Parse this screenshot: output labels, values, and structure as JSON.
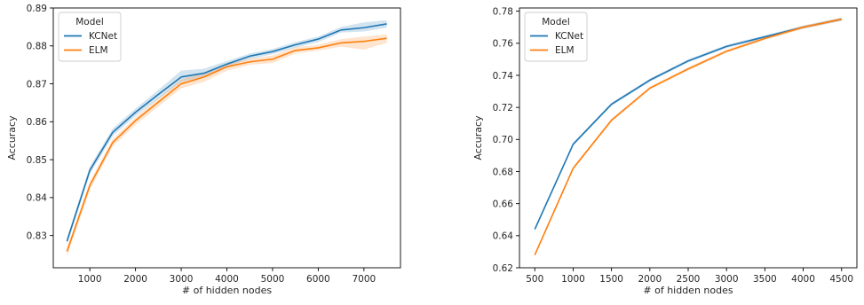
{
  "chart_data": [
    {
      "type": "line",
      "xlabel": "# of hidden nodes",
      "ylabel": "Accuracy",
      "xlim": [
        200,
        7800
      ],
      "ylim": [
        0.8215,
        0.89
      ],
      "xticks": [
        1000,
        2000,
        3000,
        4000,
        5000,
        6000,
        7000
      ],
      "xtick_labels": [
        "1000",
        "2000",
        "3000",
        "4000",
        "5000",
        "6000",
        "7000"
      ],
      "yticks": [
        0.83,
        0.84,
        0.85,
        0.86,
        0.87,
        0.88,
        0.89
      ],
      "ytick_labels": [
        "0.83",
        "0.84",
        "0.85",
        "0.86",
        "0.87",
        "0.88",
        "0.89"
      ],
      "legend": {
        "title": "Model",
        "position": "top-left"
      },
      "grid": false,
      "x": [
        500,
        1000,
        1500,
        2000,
        2500,
        3000,
        3500,
        4000,
        4500,
        5000,
        5500,
        6000,
        6500,
        7000,
        7500
      ],
      "series": [
        {
          "name": "KCNet",
          "color": "#1f77b4",
          "values": [
            0.8285,
            0.8472,
            0.8572,
            0.8625,
            0.8672,
            0.8718,
            0.8728,
            0.8752,
            0.8773,
            0.8785,
            0.8803,
            0.8818,
            0.8842,
            0.8848,
            0.8858
          ],
          "lower": [
            0.8275,
            0.8462,
            0.8562,
            0.8615,
            0.866,
            0.8705,
            0.8718,
            0.8745,
            0.8765,
            0.8778,
            0.8795,
            0.881,
            0.8835,
            0.8838,
            0.8848
          ],
          "upper": [
            0.8295,
            0.8482,
            0.8582,
            0.8635,
            0.8684,
            0.8735,
            0.874,
            0.876,
            0.878,
            0.8792,
            0.881,
            0.8825,
            0.885,
            0.8862,
            0.8868
          ]
        },
        {
          "name": "ELM",
          "color": "#ff7f0e",
          "values": [
            0.8258,
            0.8432,
            0.8545,
            0.8603,
            0.8652,
            0.87,
            0.8718,
            0.8745,
            0.8758,
            0.8765,
            0.8788,
            0.8795,
            0.8808,
            0.8812,
            0.882
          ],
          "lower": [
            0.8245,
            0.842,
            0.8535,
            0.8592,
            0.864,
            0.8688,
            0.8705,
            0.8735,
            0.875,
            0.8755,
            0.878,
            0.8788,
            0.8798,
            0.879,
            0.8808
          ],
          "upper": [
            0.8268,
            0.8442,
            0.8555,
            0.8612,
            0.8662,
            0.8712,
            0.873,
            0.8752,
            0.8766,
            0.8775,
            0.8796,
            0.8803,
            0.8818,
            0.8825,
            0.883
          ]
        }
      ]
    },
    {
      "type": "line",
      "xlabel": "# of hidden nodes",
      "ylabel": "Accuracy",
      "xlim": [
        300,
        4700
      ],
      "ylim": [
        0.62,
        0.782
      ],
      "xticks": [
        500,
        1000,
        1500,
        2000,
        2500,
        3000,
        3500,
        4000,
        4500
      ],
      "xtick_labels": [
        "500",
        "1000",
        "1500",
        "2000",
        "2500",
        "3000",
        "3500",
        "4000",
        "4500"
      ],
      "yticks": [
        0.62,
        0.64,
        0.66,
        0.68,
        0.7,
        0.72,
        0.74,
        0.76,
        0.78
      ],
      "ytick_labels": [
        "0.62",
        "0.64",
        "0.66",
        "0.68",
        "0.70",
        "0.72",
        "0.74",
        "0.76",
        "0.78"
      ],
      "legend": {
        "title": "Model",
        "position": "top-left"
      },
      "grid": false,
      "x": [
        500,
        1000,
        1500,
        2000,
        2500,
        3000,
        3500,
        4000,
        4500
      ],
      "series": [
        {
          "name": "KCNet",
          "color": "#1f77b4",
          "values": [
            0.644,
            0.697,
            0.722,
            0.737,
            0.749,
            0.758,
            0.764,
            0.77,
            0.775
          ],
          "lower": [
            0.643,
            0.696,
            0.721,
            0.736,
            0.748,
            0.757,
            0.763,
            0.769,
            0.774
          ],
          "upper": [
            0.645,
            0.698,
            0.723,
            0.738,
            0.75,
            0.759,
            0.765,
            0.771,
            0.776
          ]
        },
        {
          "name": "ELM",
          "color": "#ff7f0e",
          "values": [
            0.628,
            0.682,
            0.712,
            0.732,
            0.744,
            0.755,
            0.763,
            0.77,
            0.775
          ],
          "lower": [
            0.627,
            0.681,
            0.711,
            0.731,
            0.743,
            0.754,
            0.762,
            0.769,
            0.774
          ],
          "upper": [
            0.629,
            0.683,
            0.713,
            0.733,
            0.745,
            0.756,
            0.764,
            0.771,
            0.776
          ]
        }
      ]
    }
  ]
}
